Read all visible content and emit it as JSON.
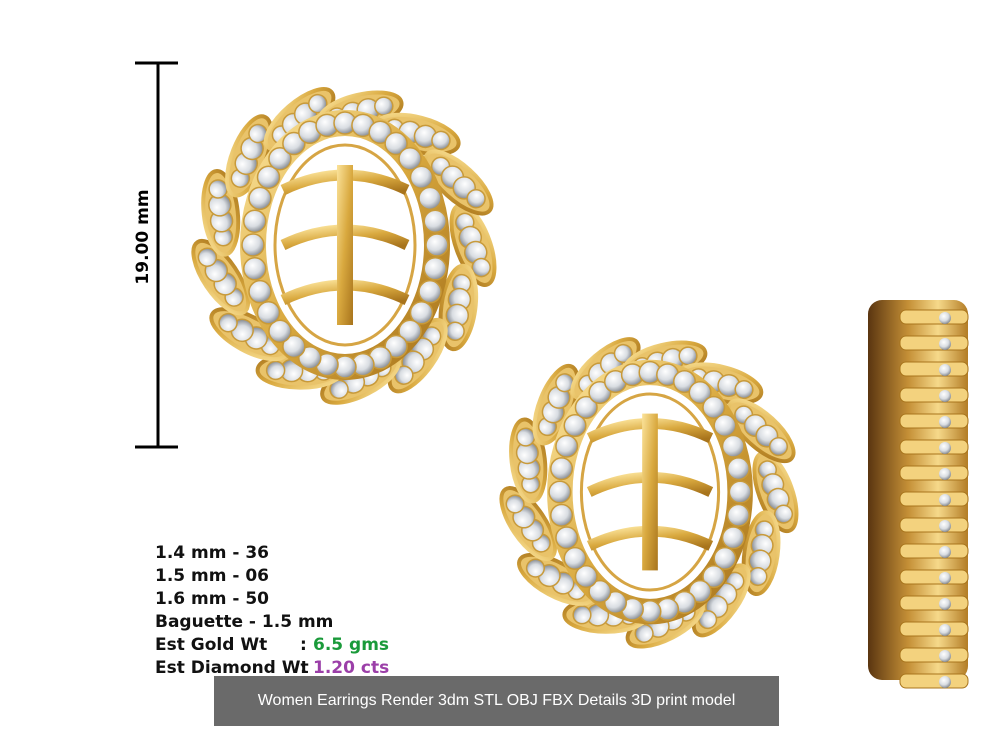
{
  "dimension": {
    "label": "19.00 mm"
  },
  "specs": [
    {
      "label": "1.4 mm - 36"
    },
    {
      "label": "1.5 mm - 06"
    },
    {
      "label": "1.6 mm - 50"
    },
    {
      "label": "Baguette - 1.5 mm"
    },
    {
      "label": "Est Gold Wt",
      "separator": ":",
      "value": "6.5 gms"
    },
    {
      "label": "Est Diamond Wt",
      "separator": ":",
      "value": "1.20 cts"
    }
  ],
  "caption": "Women Earrings Render 3dm STL OBJ FBX Details 3D print model"
}
